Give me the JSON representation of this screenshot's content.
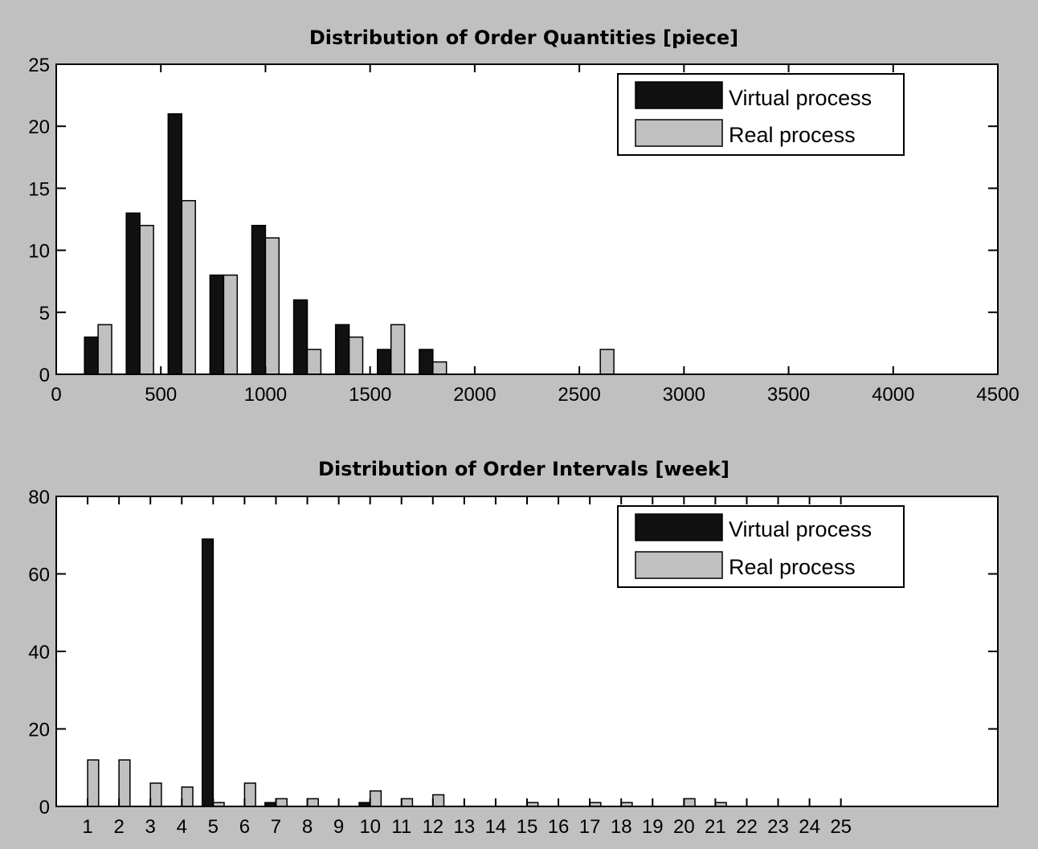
{
  "colors": {
    "figure_background": "#c0c0c0",
    "axes_background": "#ffffff",
    "virtual": "#111111",
    "real": "#c0c0c0"
  },
  "chart_data": [
    {
      "type": "bar",
      "title": "Distribution of Order Quantities [piece]",
      "xlabel": "",
      "ylabel": "",
      "xlim": [
        0,
        4500
      ],
      "ylim": [
        0,
        25
      ],
      "x_ticks": [
        0,
        500,
        1000,
        1500,
        2000,
        2500,
        3000,
        3500,
        4000,
        4500
      ],
      "y_ticks": [
        0,
        5,
        10,
        15,
        20,
        25
      ],
      "grid": false,
      "legend_position": "top-right",
      "x": [
        200,
        400,
        600,
        800,
        1000,
        1200,
        1400,
        1600,
        1800,
        2000,
        2200,
        2400,
        2600
      ],
      "bar_group_width": 130,
      "series": [
        {
          "name": "Virtual process",
          "color": "#111111",
          "values": [
            3,
            13,
            21,
            8,
            12,
            6,
            4,
            2,
            2,
            0,
            0,
            0,
            0
          ]
        },
        {
          "name": "Real process",
          "color": "#c0c0c0",
          "values": [
            4,
            12,
            14,
            8,
            11,
            2,
            3,
            4,
            1,
            0,
            0,
            0,
            2
          ]
        }
      ]
    },
    {
      "type": "bar",
      "title": "Distribution of Order Intervals [week]",
      "xlabel": "",
      "ylabel": "",
      "xlim": [
        0,
        30
      ],
      "ylim": [
        0,
        80
      ],
      "x_ticks": [
        1,
        2,
        3,
        4,
        5,
        6,
        7,
        8,
        9,
        10,
        11,
        12,
        13,
        14,
        15,
        16,
        17,
        18,
        19,
        20,
        21,
        22,
        23,
        24,
        25
      ],
      "y_ticks": [
        0,
        20,
        40,
        60,
        80
      ],
      "grid": false,
      "legend_position": "top-right",
      "x": [
        1,
        2,
        3,
        4,
        5,
        6,
        7,
        8,
        9,
        10,
        11,
        12,
        13,
        14,
        15,
        16,
        17,
        18,
        19,
        20,
        21,
        22,
        23,
        24,
        25
      ],
      "bar_group_width": 0.7,
      "series": [
        {
          "name": "Virtual process",
          "color": "#111111",
          "values": [
            0,
            0,
            0,
            0,
            69,
            0,
            1,
            0,
            0,
            1,
            0,
            0,
            0,
            0,
            0,
            0,
            0,
            0,
            0,
            0,
            0,
            0,
            0,
            0,
            0
          ]
        },
        {
          "name": "Real process",
          "color": "#c0c0c0",
          "values": [
            12,
            12,
            6,
            5,
            1,
            6,
            2,
            2,
            0,
            4,
            2,
            3,
            0,
            0,
            1,
            0,
            1,
            1,
            0,
            2,
            1,
            0,
            0,
            0,
            0
          ]
        }
      ]
    }
  ]
}
